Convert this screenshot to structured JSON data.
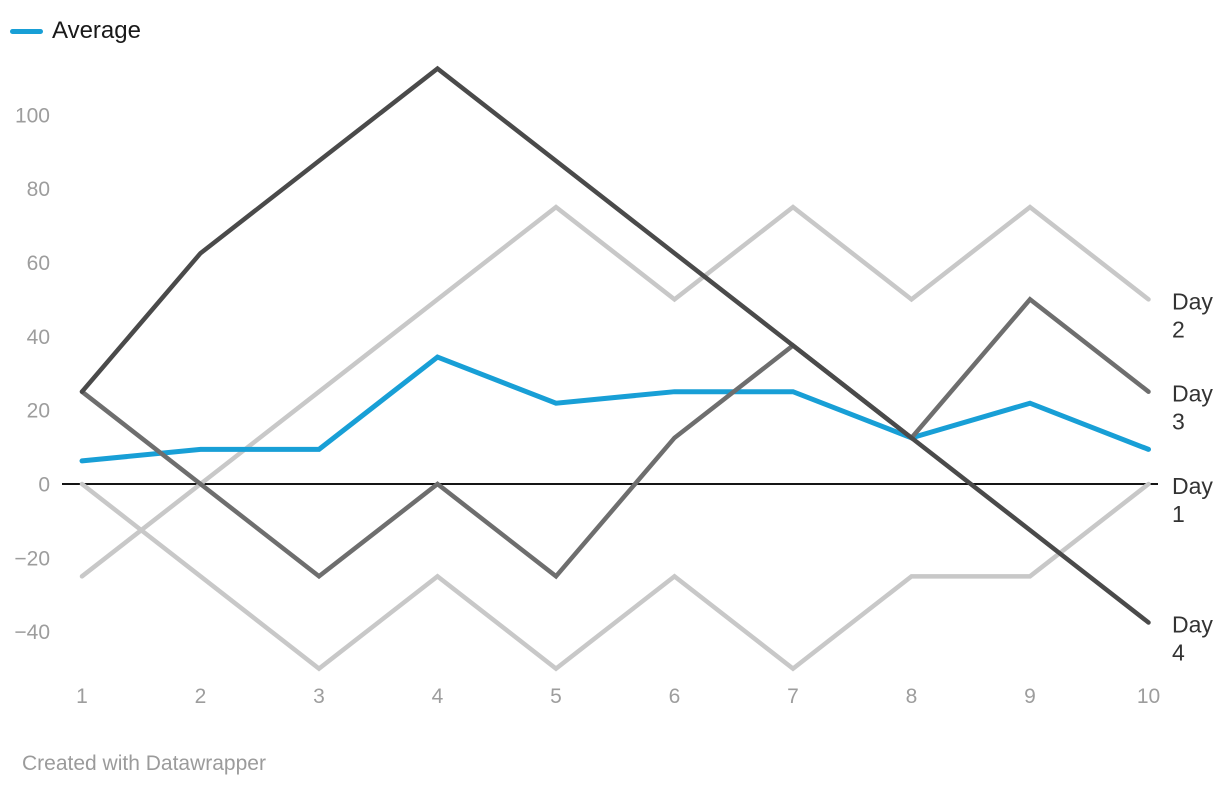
{
  "legend": {
    "label": "Average",
    "color": "#189fd6"
  },
  "footer": {
    "credit": "Created with Datawrapper"
  },
  "colors": {
    "average_line": "#189fd6",
    "light_gray_line": "#c8c8c8",
    "medium_gray_line": "#6e6e6e",
    "dark_gray_line": "#4a4a4a",
    "axis_text": "#9d9d9d",
    "series_label_text": "#333333",
    "zero_baseline": "#151515",
    "background": "#ffffff"
  },
  "chart_data": {
    "type": "line",
    "title": "",
    "xlabel": "",
    "ylabel": "",
    "x": [
      1,
      2,
      3,
      4,
      5,
      6,
      7,
      8,
      9,
      10
    ],
    "x_tick_labels": [
      "1",
      "2",
      "3",
      "4",
      "5",
      "6",
      "7",
      "8",
      "9",
      "10"
    ],
    "y_ticks": [
      -40,
      -20,
      0,
      20,
      40,
      60,
      80,
      100
    ],
    "y_tick_labels": [
      "−40",
      "−20",
      "0",
      "20",
      "40",
      "60",
      "80",
      "100"
    ],
    "xlim": [
      1,
      10
    ],
    "ylim": [
      -50,
      115
    ],
    "grid": false,
    "zero_baseline": true,
    "legend_position": "top-left",
    "right_edge_labels": true,
    "series": [
      {
        "name": "Day 1",
        "color": "#c8c8c8",
        "label_lines": [
          "Day",
          "1"
        ],
        "values": [
          0,
          -25,
          -50,
          -25,
          -50,
          -25,
          -50,
          -25,
          -25,
          0
        ]
      },
      {
        "name": "Day 2",
        "color": "#c8c8c8",
        "label_lines": [
          "Day",
          "2"
        ],
        "values": [
          -25,
          0,
          25,
          50,
          75,
          50,
          75,
          50,
          75,
          50
        ]
      },
      {
        "name": "Day 3",
        "color": "#6e6e6e",
        "label_lines": [
          "Day",
          "3"
        ],
        "values": [
          25,
          0,
          -25,
          0,
          -25,
          12.5,
          37.5,
          12.5,
          50,
          25
        ]
      },
      {
        "name": "Day 4",
        "color": "#4a4a4a",
        "label_lines": [
          "Day",
          "4"
        ],
        "values": [
          25,
          62.5,
          87.5,
          112.5,
          87.5,
          62.5,
          37.5,
          12.5,
          -12.5,
          -37.5
        ]
      },
      {
        "name": "Average",
        "color": "#189fd6",
        "highlighted": true,
        "values": [
          6.25,
          9.375,
          9.375,
          34.375,
          21.875,
          25,
          25,
          12.5,
          21.875,
          9.375
        ]
      }
    ]
  }
}
